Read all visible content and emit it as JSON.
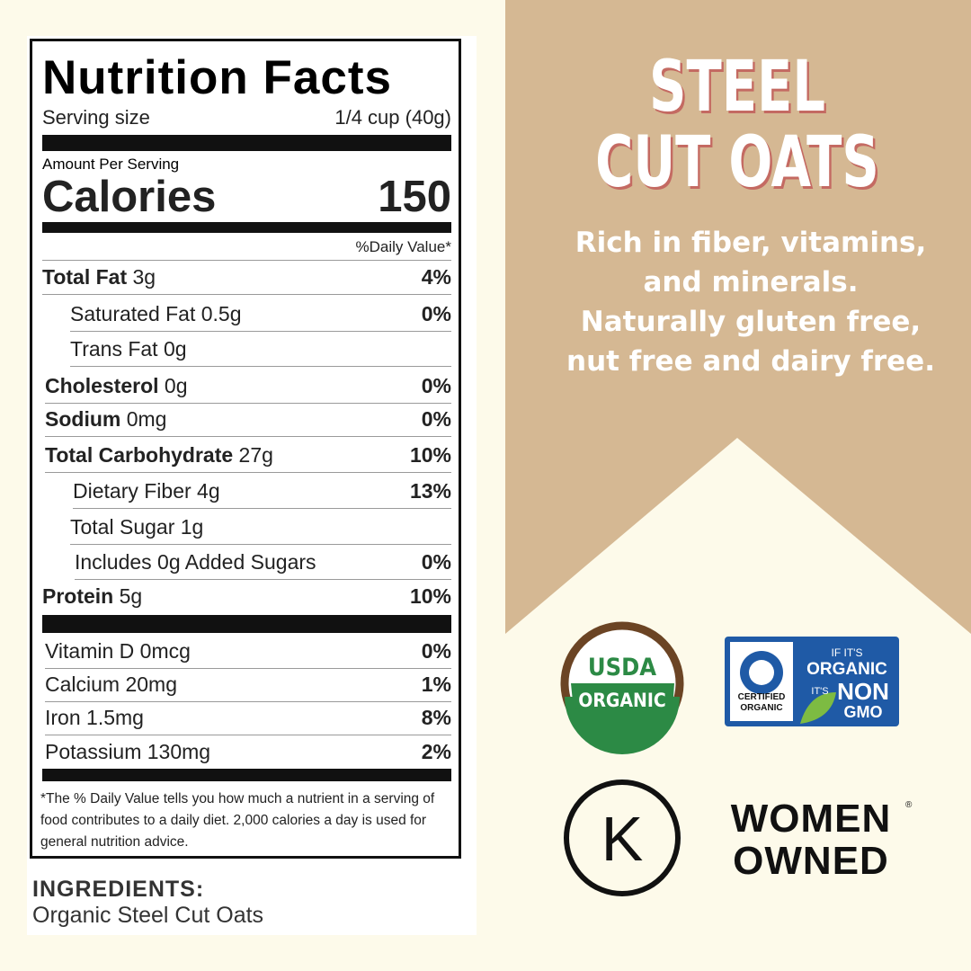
{
  "nutrition": {
    "title": "Nutrition Facts",
    "serving_label": "Serving size",
    "serving_value": "1/4 cup (40g)",
    "amount_per_serving": "Amount Per Serving",
    "calories_label": "Calories",
    "calories_value": "150",
    "daily_value_header": "%Daily Value*",
    "rows": [
      {
        "label": "Total Fat",
        "amount": "3g",
        "dv": "4%"
      },
      {
        "label": "Saturated Fat",
        "amount": "0.5g",
        "dv": "0%"
      },
      {
        "label": "Trans Fat",
        "amount": "0g"
      },
      {
        "label": "Cholesterol",
        "amount": "0g",
        "dv": "0%"
      },
      {
        "label": "Sodium",
        "amount": "0mg",
        "dv": "0%"
      },
      {
        "label": "Total Carbohydrate",
        "amount": "27g",
        "dv": "10%"
      },
      {
        "label": "Dietary Fiber",
        "amount": "4g",
        "dv": "13%"
      },
      {
        "label": "Total Sugar",
        "amount": "1g"
      },
      {
        "label": "Includes 0g Added Sugars",
        "dv": "0%"
      },
      {
        "label": "Protein",
        "amount": "5g",
        "dv": "10%"
      }
    ],
    "vitamins": [
      {
        "label": "Vitamin D 0mcg",
        "dv": "0%"
      },
      {
        "label": "Calcium 20mg",
        "dv": "1%"
      },
      {
        "label": "Iron 1.5mg",
        "dv": "8%"
      },
      {
        "label": "Potassium 130mg",
        "dv": "2%"
      }
    ],
    "footnote": "*The % Daily Value tells you how much a nutrient in a serving of food contributes to a daily diet. 2,000 calories a day is used for general nutrition advice."
  },
  "ingredients": {
    "heading": "INGREDIENTS:",
    "text": "Organic Steel Cut Oats"
  },
  "title_lines": [
    "STEEL",
    "CUT OATS"
  ],
  "description": "Rich in fiber, vitamins, and minerals. Naturally gluten free, nut free and dairy free.",
  "badges": {
    "usda": [
      "USDA",
      "ORGANIC"
    ],
    "qai": {
      "certified": [
        "CERTIFIED",
        "ORGANIC"
      ],
      "slogan": [
        "IF IT'S",
        "ORGANIC",
        "IT'S",
        "NON",
        "GMO"
      ]
    },
    "kosher": "K",
    "women_owned": [
      "WOMEN",
      "OWNED"
    ],
    "registered": "®"
  }
}
